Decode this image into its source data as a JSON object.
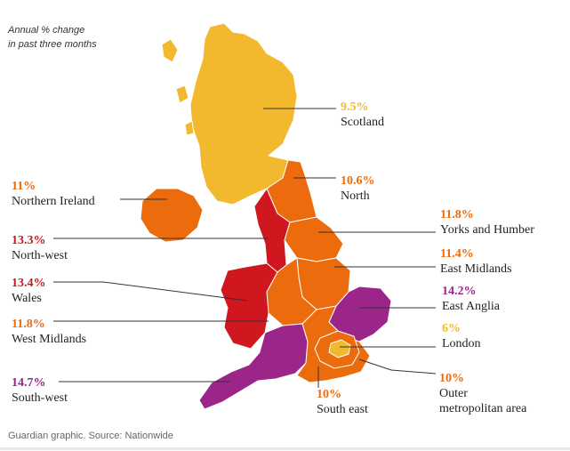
{
  "subtitle_line1": "Annual % change",
  "subtitle_line2": "in past three months",
  "source": "Guardian graphic. Source: Nationwide",
  "colors": {
    "yellow": "#f3b92e",
    "orange": "#ec6b0c",
    "red": "#d0161f",
    "purple": "#9b2589"
  },
  "regions": {
    "scotland": {
      "value": "9.5%",
      "name": "Scotland",
      "color": "#f3b92e"
    },
    "north": {
      "value": "10.6%",
      "name": "North",
      "color": "#ec6b0c"
    },
    "ni": {
      "value": "11%",
      "name": "Northern Ireland",
      "color": "#ec6b0c"
    },
    "yorks": {
      "value": "11.8%",
      "name": "Yorks and Humber",
      "color": "#ec6b0c"
    },
    "nw": {
      "value": "13.3%",
      "name": "North-west",
      "color": "#d0161f"
    },
    "em": {
      "value": "11.4%",
      "name": "East Midlands",
      "color": "#ec6b0c"
    },
    "wales": {
      "value": "13.4%",
      "name": "Wales",
      "color": "#d0161f"
    },
    "ea": {
      "value": "14.2%",
      "name": "East Anglia",
      "color": "#9b2589"
    },
    "wm": {
      "value": "11.8%",
      "name": "West Midlands",
      "color": "#ec6b0c"
    },
    "london": {
      "value": "6%",
      "name": "London",
      "color": "#f3b92e"
    },
    "sw": {
      "value": "14.7%",
      "name": "South-west",
      "color": "#9b2589"
    },
    "se": {
      "value": "10%",
      "name": "South east",
      "color": "#ec6b0c"
    },
    "oma": {
      "value": "10%",
      "name_line1": "Outer",
      "name_line2": "metropolitan area",
      "color": "#ec6b0c"
    }
  }
}
